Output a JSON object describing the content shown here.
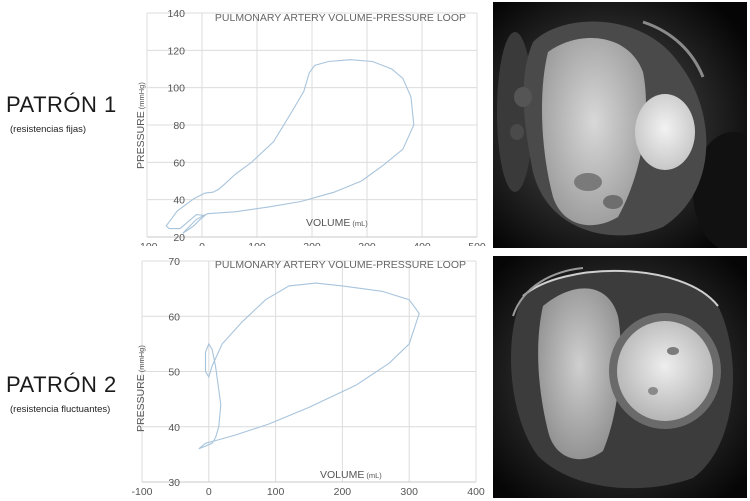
{
  "patterns": [
    {
      "title": "PATRÓN 1",
      "subtitle": "(resistencias fijas)"
    },
    {
      "title": "PATRÓN 2",
      "subtitle": "(resistencia fluctuantes)"
    }
  ],
  "chart_data": [
    {
      "type": "line",
      "title": "PULMONARY ARTERY VOLUME-PRESSURE LOOP",
      "xlabel": "VOLUME",
      "xlabel_unit": "(mL)",
      "ylabel": "PRESSURE",
      "ylabel_unit": "(mmHg)",
      "xlim": [
        -100,
        500
      ],
      "ylim": [
        20,
        140
      ],
      "xticks": [
        -100,
        0,
        100,
        200,
        300,
        400,
        500
      ],
      "yticks": [
        20,
        40,
        60,
        80,
        100,
        120,
        140
      ],
      "grid": true,
      "series": [
        {
          "x": [
            5,
            -15,
            -45,
            -65,
            -60,
            -40,
            -10,
            5,
            -5,
            -15,
            -35,
            -10,
            10,
            60,
            120,
            180,
            240,
            290,
            330,
            365,
            385,
            380,
            365,
            345,
            310,
            270,
            230,
            205,
            195,
            185,
            165,
            130,
            90,
            60,
            40,
            30,
            20,
            5
          ],
          "y": [
            43.5,
            40.5,
            34,
            26,
            24.5,
            24.5,
            32,
            31.5,
            29,
            26,
            22,
            29.5,
            32.5,
            33.5,
            36,
            39,
            44,
            50,
            58.5,
            67,
            80,
            95,
            105,
            110,
            114,
            115,
            114,
            112,
            108,
            98,
            88,
            71,
            60,
            53.5,
            48,
            45.5,
            44,
            43.5
          ]
        }
      ]
    },
    {
      "type": "line",
      "title": "PULMONARY ARTERY VOLUME-PRESSURE LOOP",
      "xlabel": "VOLUME",
      "xlabel_unit": "(mL)",
      "ylabel": "PRESSURE",
      "ylabel_unit": "(mmHg)",
      "xlim": [
        -100,
        400
      ],
      "ylim": [
        30,
        70
      ],
      "xticks": [
        -100,
        0,
        100,
        200,
        300,
        400
      ],
      "yticks": [
        30,
        40,
        50,
        60,
        70
      ],
      "grid": true,
      "series": [
        {
          "x": [
            -15,
            -5,
            10,
            40,
            90,
            150,
            220,
            270,
            300,
            315,
            300,
            260,
            200,
            160,
            120,
            85,
            50,
            20,
            5,
            0,
            -5,
            -5,
            0,
            5,
            10,
            18,
            15,
            10,
            5,
            -5,
            -15
          ],
          "y": [
            36,
            37,
            37.5,
            38.5,
            40.5,
            43.5,
            47.5,
            51.5,
            55,
            60.5,
            63,
            64.5,
            65.5,
            66,
            65.5,
            63,
            59,
            55,
            51,
            49,
            50,
            53.5,
            55,
            54,
            51,
            44,
            40,
            38,
            37,
            36.5,
            36
          ]
        }
      ]
    }
  ],
  "images": [
    {
      "description": "cardiac MRI short-axis view"
    },
    {
      "description": "cardiac MRI short-axis view"
    }
  ]
}
